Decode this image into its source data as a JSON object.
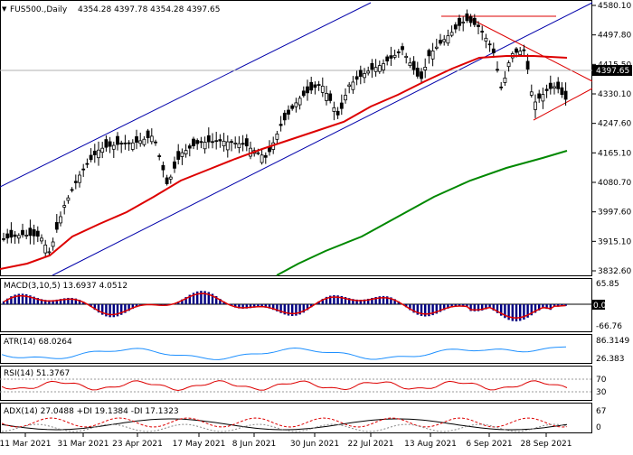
{
  "header": {
    "symbol": "FUS500.,Daily",
    "ohlc": "4354.28 4397.78 4354.28 4397.65",
    "symbol_dropdown": "▼"
  },
  "price_axis": {
    "ticks": [
      "4580.10",
      "4497.80",
      "4415.50",
      "4330.10",
      "4247.60",
      "4165.10",
      "4080.70",
      "3997.60",
      "3915.10",
      "3832.60"
    ],
    "current_price": "4397.65"
  },
  "date_axis": {
    "ticks": [
      "11 Mar 2021",
      "31 Mar 2021",
      "23 Apr 2021",
      "17 May 2021",
      "8 Jun 2021",
      "30 Jun 2021",
      "22 Jul 2021",
      "13 Aug 2021",
      "6 Sep 2021",
      "28 Sep 2021"
    ]
  },
  "panes": {
    "macd": {
      "title": "MACD(3,10,5) 13.6937 4.0512",
      "ticks": [
        "65.85",
        "0.00",
        "-66.76"
      ]
    },
    "atr": {
      "title": "ATR(14) 68.0264",
      "ticks": [
        "86.3149",
        "26.383"
      ]
    },
    "rsi": {
      "title": "RSI(14) 51.3767",
      "ticks": [
        "70",
        "30"
      ]
    },
    "adx": {
      "title": "ADX(14) 27.0488 +DI 19.1384 -DI 17.1323",
      "ticks": [
        "67",
        "0"
      ]
    }
  },
  "colors": {
    "bull_candle": "#ffffff",
    "bear_candle": "#000000",
    "sma_fast": "#dd0000",
    "sma_slow": "#008800",
    "channel": "#0000aa",
    "trendline": "#dd0000",
    "macd_hist": "#000080",
    "macd_signal": "#dd0000",
    "atr_line": "#1e90ff",
    "rsi_line": "#dd0000",
    "adx_line": "#000000",
    "current_price_bg": "#000000"
  },
  "chart_data": {
    "type": "candlestick",
    "instrument": "FUS500.",
    "timeframe": "Daily",
    "last_bar": {
      "open": 4354.28,
      "high": 4397.78,
      "low": 4354.28,
      "close": 4397.65
    },
    "y_range": [
      3832.6,
      4580.1
    ],
    "x_range": [
      "2021-03-11",
      "2021-10-07"
    ],
    "indicators": [
      {
        "name": "MACD",
        "params": [
          3,
          10,
          5
        ],
        "values": [
          13.6937,
          4.0512
        ]
      },
      {
        "name": "ATR",
        "params": [
          14
        ],
        "values": [
          68.0264
        ]
      },
      {
        "name": "RSI",
        "params": [
          14
        ],
        "values": [
          51.3767
        ]
      },
      {
        "name": "ADX",
        "params": [
          14
        ],
        "values": [
          27.0488,
          19.1384,
          17.1323
        ]
      }
    ]
  }
}
